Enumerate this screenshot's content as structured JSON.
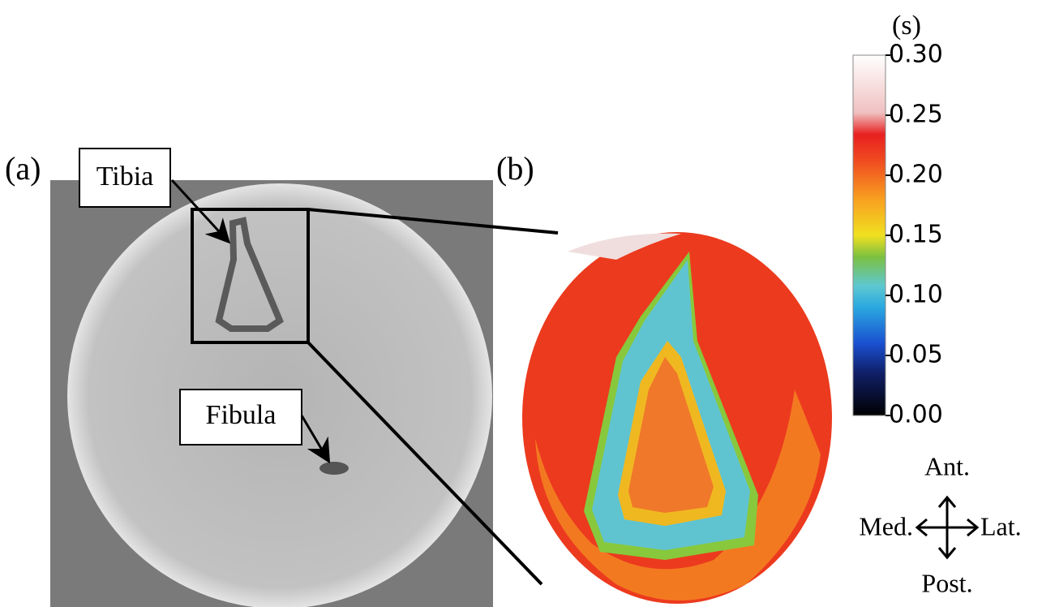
{
  "panels": {
    "a": {
      "label": "(a)",
      "annotations": [
        "Tibia",
        "Fibula"
      ]
    },
    "b": {
      "label": "(b)"
    }
  },
  "colorbar": {
    "unit": "(s)",
    "range": [
      0,
      0.3
    ],
    "ticks": [
      {
        "value": 0,
        "label": "0.00"
      },
      {
        "value": 0.05,
        "label": "0.05"
      },
      {
        "value": 0.1,
        "label": "0.10"
      },
      {
        "value": 0.15,
        "label": "0.15"
      },
      {
        "value": 0.2,
        "label": "0.20"
      },
      {
        "value": 0.25,
        "label": "0.25"
      },
      {
        "value": 0.3,
        "label": "0.30"
      }
    ]
  },
  "orientation": {
    "anterior": "Ant.",
    "posterior": "Post.",
    "medial": "Med.",
    "lateral": "Lat."
  }
}
